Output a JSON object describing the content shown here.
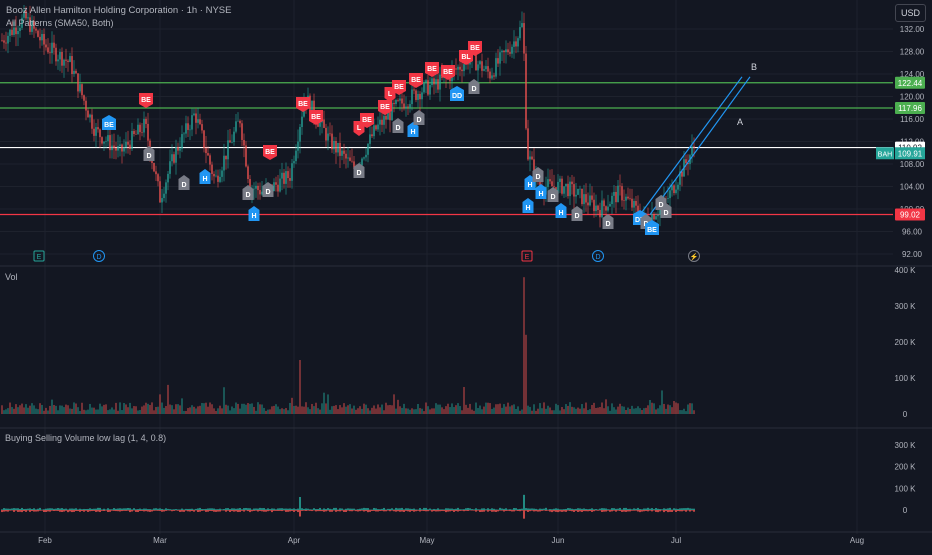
{
  "header": {
    "title": "Booz Allen Hamilton Holding Corporation · 1h · NYSE",
    "indicator": "All Patterns (SMA50, Both)",
    "currency": "USD"
  },
  "price_axis": {
    "ticks": [
      "132.00",
      "128.00",
      "124.00",
      "120.00",
      "116.00",
      "112.00",
      "108.00",
      "104.00",
      "100.00",
      "96.00",
      "92.00"
    ]
  },
  "levels": [
    {
      "value": "122.44",
      "color": "#4caf50"
    },
    {
      "value": "117.96",
      "color": "#4caf50"
    },
    {
      "value": "110.92",
      "color": "#ffffff"
    },
    {
      "value": "99.02",
      "color": "#f23645"
    }
  ],
  "symbol_tag": {
    "symbol": "BAH",
    "price": "109.91",
    "color": "#26a69a"
  },
  "pattern_labels": {
    "A": "A",
    "B": "B"
  },
  "event_markers": [
    {
      "text": "E",
      "color": "#26a69a"
    },
    {
      "text": "D",
      "color": "#2196f3"
    },
    {
      "text": "E",
      "color": "#f23645"
    },
    {
      "text": "D",
      "color": "#2196f3"
    },
    {
      "text": "⚡",
      "color": "#787b86"
    }
  ],
  "badges": {
    "BE": "BE",
    "D": "D",
    "H": "H",
    "L": "L",
    "BL": "BL",
    "DD": "DD",
    "LH": "LH"
  },
  "volume_pane": {
    "title": "Vol",
    "ticks": [
      "400 K",
      "300 K",
      "200 K",
      "100 K",
      "0"
    ]
  },
  "bsv_pane": {
    "title": "Buying Selling Volume low lag (1, 4, 0.8)",
    "ticks": [
      "300 K",
      "200 K",
      "100 K",
      "0"
    ]
  },
  "time_axis": {
    "ticks": [
      "Feb",
      "Mar",
      "Apr",
      "May",
      "Jun",
      "Jul",
      "Aug"
    ]
  },
  "colors": {
    "up": "#26a69a",
    "down": "#ef5350",
    "bg": "#131722",
    "grid": "#1e222d",
    "bearish": "#f23645",
    "bullish": "#2196f3",
    "neutral": "#787b86"
  },
  "chart_data": {
    "type": "line",
    "title": "Booz Allen Hamilton Holding Corporation · 1h · NYSE",
    "x": [
      "Feb",
      "Mar",
      "Apr",
      "May",
      "Jun",
      "Jul"
    ],
    "series": [
      {
        "name": "BAH",
        "values": [
          128,
          112,
          100,
          118,
          122,
          109.91
        ]
      }
    ],
    "ylim": [
      92,
      132
    ],
    "xlabel": "",
    "ylabel": ""
  }
}
